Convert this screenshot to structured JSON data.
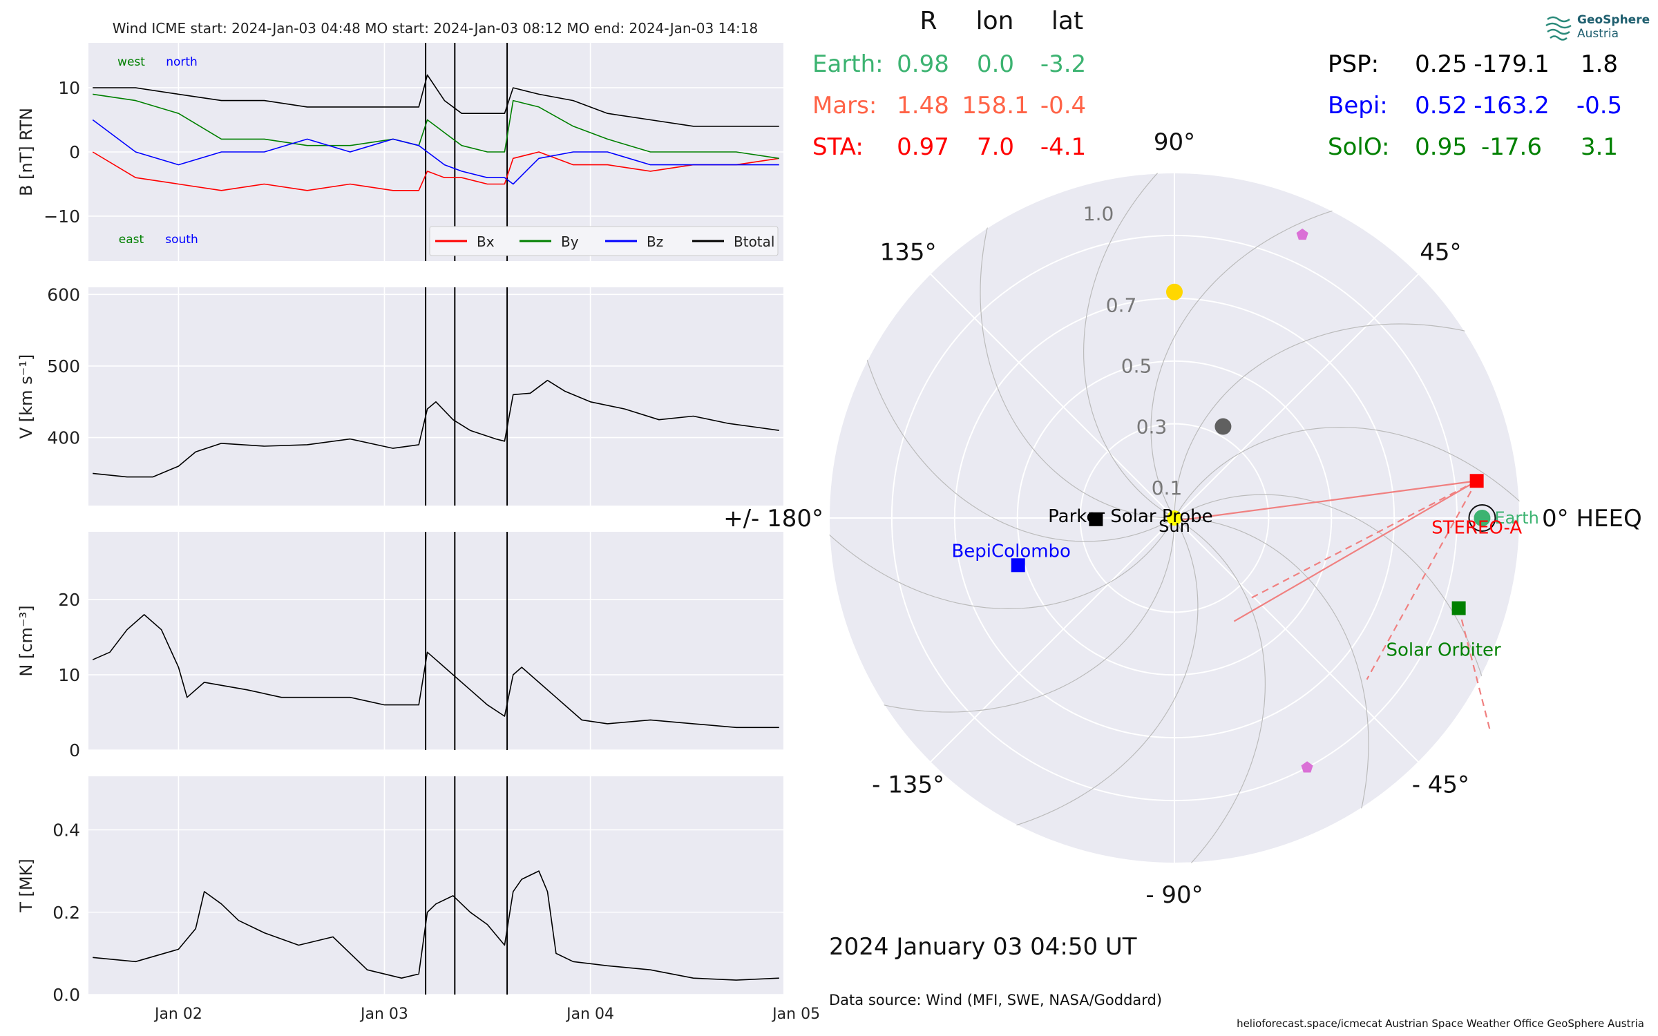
{
  "header": {
    "title": "Wind    ICME start: 2024-Jan-03 04:48   MO start: 2024-Jan-03 08:12   MO end: 2024-Jan-03 14:18"
  },
  "timeseries": {
    "x_ticks": [
      "Jan 02",
      "Jan 03",
      "Jan 04",
      "Jan 05"
    ],
    "time_range_hours": [
      -10.5,
      70.5
    ],
    "event_lines_hours": [
      28.8,
      32.2,
      38.3
    ],
    "panels": [
      {
        "id": "B",
        "ylabel": "B [nT] RTN",
        "ylim": [
          -17,
          17
        ],
        "yticks": [
          -10,
          0,
          10
        ],
        "ytick_labels": [
          "−10",
          "0",
          "10"
        ],
        "corner_labels": {
          "top_left": "west",
          "top_right": "north",
          "bottom_left": "east",
          "bottom_right": "south"
        }
      },
      {
        "id": "V",
        "ylabel": "V [km s⁻¹]",
        "ylim": [
          305,
          610
        ],
        "yticks": [
          400,
          500,
          600
        ],
        "ytick_labels": [
          "400",
          "500",
          "600"
        ]
      },
      {
        "id": "N",
        "ylabel": "N [cm⁻³]",
        "ylim": [
          0,
          29
        ],
        "yticks": [
          0,
          10,
          20
        ],
        "ytick_labels": [
          "0",
          "10",
          "20"
        ]
      },
      {
        "id": "T",
        "ylabel": "T [MK]",
        "ylim": [
          0,
          0.53
        ],
        "yticks": [
          0,
          0.2,
          0.4
        ],
        "ytick_labels": [
          "0.0",
          "0.2",
          "0.4"
        ]
      }
    ],
    "legend": [
      {
        "label": "Bx",
        "color": "#ff0000"
      },
      {
        "label": "By",
        "color": "#008000"
      },
      {
        "label": "Bz",
        "color": "#0000ff"
      },
      {
        "label": "Btotal",
        "color": "#000000"
      }
    ]
  },
  "chart_data": [
    {
      "type": "line",
      "title": "",
      "xlabel": "",
      "ylabel": "B [nT] RTN",
      "x_unit": "hours after 2024-01-02 00:00 UT",
      "x": [
        -10,
        -5,
        0,
        5,
        10,
        15,
        20,
        25,
        28,
        29,
        31,
        33,
        36,
        38,
        39,
        42,
        46,
        50,
        55,
        60,
        65,
        70
      ],
      "series": [
        {
          "name": "Bx",
          "values": [
            0,
            -4,
            -5,
            -6,
            -5,
            -6,
            -5,
            -6,
            -6,
            -3,
            -4,
            -4,
            -5,
            -5,
            -1,
            0,
            -2,
            -2,
            -3,
            -2,
            -2,
            -1
          ]
        },
        {
          "name": "By",
          "values": [
            9,
            8,
            6,
            2,
            2,
            1,
            1,
            2,
            1,
            5,
            3,
            1,
            0,
            0,
            8,
            7,
            4,
            2,
            0,
            0,
            0,
            -1
          ]
        },
        {
          "name": "Bz",
          "values": [
            5,
            0,
            -2,
            0,
            0,
            2,
            0,
            2,
            1,
            0,
            -2,
            -3,
            -4,
            -4,
            -5,
            -1,
            0,
            0,
            -2,
            -2,
            -2,
            -2
          ]
        },
        {
          "name": "Btotal",
          "values": [
            10,
            10,
            9,
            8,
            8,
            7,
            7,
            7,
            7,
            12,
            8,
            6,
            6,
            6,
            10,
            9,
            8,
            6,
            5,
            4,
            4,
            4
          ]
        }
      ]
    },
    {
      "type": "line",
      "title": "",
      "xlabel": "",
      "ylabel": "V [km s⁻¹]",
      "x_unit": "hours after 2024-01-02 00:00 UT",
      "x": [
        -10,
        -6,
        -3,
        0,
        2,
        5,
        10,
        15,
        20,
        25,
        28,
        29,
        30,
        32,
        34,
        37,
        38,
        39,
        41,
        43,
        45,
        48,
        52,
        56,
        60,
        64,
        67,
        70
      ],
      "series": [
        {
          "name": "V",
          "values": [
            350,
            345,
            345,
            360,
            380,
            392,
            388,
            390,
            398,
            385,
            390,
            440,
            450,
            425,
            410,
            398,
            395,
            460,
            462,
            480,
            465,
            450,
            440,
            425,
            430,
            420,
            415,
            410
          ]
        }
      ]
    },
    {
      "type": "line",
      "title": "",
      "xlabel": "",
      "ylabel": "N [cm⁻³]",
      "x_unit": "hours after 2024-01-02 00:00 UT",
      "x": [
        -10,
        -8,
        -6,
        -4,
        -2,
        0,
        1,
        3,
        8,
        12,
        16,
        20,
        24,
        28,
        29,
        30,
        32,
        34,
        36,
        38,
        39,
        40,
        42,
        44,
        47,
        50,
        55,
        60,
        65,
        70
      ],
      "series": [
        {
          "name": "N",
          "values": [
            12,
            13,
            16,
            18,
            16,
            11,
            7,
            9,
            8,
            7,
            7,
            7,
            6,
            6,
            13,
            12,
            10,
            8,
            6,
            4.5,
            10,
            11,
            9,
            7,
            4,
            3.5,
            4,
            3.5,
            3,
            3
          ]
        }
      ]
    },
    {
      "type": "line",
      "title": "",
      "xlabel": "",
      "ylabel": "T [MK]",
      "x_unit": "hours after 2024-01-02 00:00 UT",
      "x": [
        -10,
        -5,
        0,
        2,
        3,
        5,
        7,
        10,
        14,
        18,
        22,
        26,
        28,
        29,
        30,
        32,
        34,
        36,
        38,
        39,
        40,
        42,
        43,
        44,
        46,
        50,
        55,
        60,
        65,
        70
      ],
      "series": [
        {
          "name": "T",
          "values": [
            0.09,
            0.08,
            0.11,
            0.16,
            0.25,
            0.22,
            0.18,
            0.15,
            0.12,
            0.14,
            0.06,
            0.04,
            0.05,
            0.2,
            0.22,
            0.24,
            0.2,
            0.17,
            0.12,
            0.25,
            0.28,
            0.3,
            0.25,
            0.1,
            0.08,
            0.07,
            0.06,
            0.04,
            0.035,
            0.04
          ]
        }
      ]
    },
    {
      "type": "scatter",
      "title": "",
      "projection": "polar (HEEQ longitude, radial distance in AU)",
      "theta_labels": [
        {
          "deg": 0,
          "text": "0° HEEQ"
        },
        {
          "deg": 45,
          "text": "45°"
        },
        {
          "deg": 90,
          "text": "90°"
        },
        {
          "deg": 135,
          "text": "135°"
        },
        {
          "deg": 180,
          "text": "+/- 180°"
        },
        {
          "deg": -135,
          "text": "- 135°"
        },
        {
          "deg": -90,
          "text": "- 90°"
        },
        {
          "deg": -45,
          "text": "- 45°"
        }
      ],
      "r_rings": [
        0.3,
        0.5,
        0.7,
        0.9,
        1.1
      ],
      "r_labels": [
        {
          "r": 0.1,
          "text": "0.1"
        },
        {
          "r": 0.3,
          "text": "0.3"
        },
        {
          "r": 0.5,
          "text": "0.5"
        },
        {
          "r": 0.7,
          "text": "0.7"
        },
        {
          "r": 1.0,
          "text": "1.0"
        }
      ],
      "r_max": 1.1,
      "bodies": [
        {
          "name": "Sun",
          "r": 0,
          "lon": 0,
          "color": "#ffff00",
          "marker": "circle",
          "label": "Sun",
          "label_color": "#000000"
        },
        {
          "name": "Earth",
          "r": 0.98,
          "lon": 0.0,
          "color": "#3cb371",
          "marker": "circle",
          "label": "Earth",
          "label_color": "#3cb371"
        },
        {
          "name": "STEREO-A",
          "r": 0.97,
          "lon": 7.0,
          "color": "#ff0000",
          "marker": "square",
          "label": "STEREO-A",
          "label_color": "#ff0000"
        },
        {
          "name": "Solar Orbiter",
          "r": 0.95,
          "lon": -17.6,
          "color": "#008000",
          "marker": "square",
          "label": "Solar Orbiter",
          "label_color": "#008000"
        },
        {
          "name": "BepiColombo",
          "r": 0.52,
          "lon": -163.2,
          "color": "#0000ff",
          "marker": "square",
          "label": "BepiColombo",
          "label_color": "#0000ff"
        },
        {
          "name": "Parker Solar Probe",
          "r": 0.25,
          "lon": -179.1,
          "color": "#000000",
          "marker": "square",
          "label": "Parker Solar Probe",
          "label_color": "#000000"
        },
        {
          "name": "Venus",
          "r": 0.72,
          "lon": 90,
          "color": "#ffd700",
          "marker": "circle",
          "label": ""
        },
        {
          "name": "Mercury",
          "r": 0.33,
          "lon": 62,
          "color": "#606060",
          "marker": "circle",
          "label": ""
        },
        {
          "name": "Pentagon 1",
          "r": 0.99,
          "lon": 65.7,
          "color": "#da70d6",
          "marker": "pentagon",
          "label": ""
        },
        {
          "name": "Pentagon 2",
          "r": 0.9,
          "lon": -62,
          "color": "#da70d6",
          "marker": "pentagon",
          "label": ""
        }
      ]
    }
  ],
  "positions_table": {
    "header": [
      "R",
      "lon",
      "lat"
    ],
    "left": [
      {
        "name": "Earth:",
        "R": "0.98",
        "lon": "0.0",
        "lat": "-3.2",
        "color": "#3cb371"
      },
      {
        "name": "Mars:",
        "R": "1.48",
        "lon": "158.1",
        "lat": "-0.4",
        "color": "#ff6347"
      },
      {
        "name": "STA:",
        "R": "0.97",
        "lon": "7.0",
        "lat": "-4.1",
        "color": "#ff0000"
      }
    ],
    "right": [
      {
        "name": "PSP:",
        "R": "0.25",
        "lon": "-179.1",
        "lat": "1.8",
        "color": "#000000"
      },
      {
        "name": "Bepi:",
        "R": "0.52",
        "lon": "-163.2",
        "lat": "-0.5",
        "color": "#0000ff"
      },
      {
        "name": "SolO:",
        "R": "0.95",
        "lon": "-17.6",
        "lat": "3.1",
        "color": "#008000"
      }
    ]
  },
  "footer": {
    "datetime": "2024 January 03  04:50 UT",
    "data_source": "Data source: Wind (MFI, SWE, NASA/Goddard)",
    "credits": "helioforecast.space/icmecat   Austrian Space Weather Office   GeoSphere Austria"
  },
  "logo": {
    "line1": "GeoSphere",
    "line2": "Austria"
  },
  "colors": {
    "axes_bg": "#eaeaf2",
    "grid": "#ffffff",
    "polar_grid": "#bbbbbb",
    "event_line": "#000000"
  }
}
